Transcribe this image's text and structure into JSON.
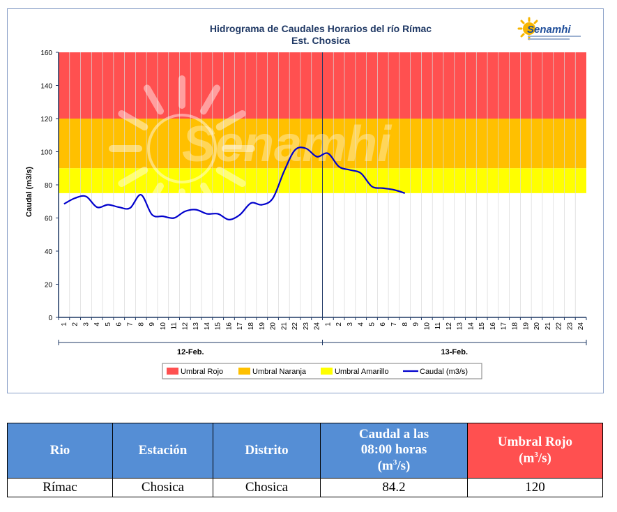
{
  "chart_data": {
    "type": "line",
    "title": "Hidrograma de Caudales Horarios del río Rímac",
    "subtitle": "Est. Chosica",
    "ylabel": "Caudal  (m3/s)",
    "ylim": [
      0,
      160
    ],
    "yticks": [
      "0",
      "20",
      "40",
      "60",
      "80",
      "100",
      "120",
      "140",
      "160"
    ],
    "x_tick_labels": [
      "1",
      "2",
      "3",
      "4",
      "5",
      "6",
      "7",
      "8",
      "9",
      "10",
      "11",
      "12",
      "13",
      "14",
      "15",
      "16",
      "17",
      "18",
      "19",
      "20",
      "21",
      "22",
      "23",
      "24",
      "1",
      "2",
      "3",
      "4",
      "5",
      "6",
      "7",
      "8",
      "9",
      "10",
      "11",
      "12",
      "13",
      "14",
      "15",
      "16",
      "17",
      "18",
      "19",
      "20",
      "21",
      "22",
      "23",
      "24"
    ],
    "days": [
      "12-Feb.",
      "13-Feb."
    ],
    "thresholds": [
      {
        "name": "Umbral Rojo",
        "from": 120,
        "to": 160,
        "color": "#ff5050"
      },
      {
        "name": "Umbral Naranja",
        "from": 90,
        "to": 120,
        "color": "#ffc000"
      },
      {
        "name": "Umbral Amarillo",
        "from": 75,
        "to": 90,
        "color": "#ffff00"
      }
    ],
    "series": [
      {
        "name": "Caudal (m3/s)",
        "color": "#0000cc",
        "x": [
          0,
          1,
          2,
          3,
          4,
          5,
          6,
          7,
          8,
          9,
          10,
          11,
          12,
          13,
          14,
          15,
          16,
          17,
          18,
          19,
          20,
          21,
          22,
          23,
          24,
          25,
          26,
          27,
          28,
          29,
          30,
          31
        ],
        "values": [
          68.5,
          72,
          73,
          66.5,
          68,
          66.5,
          66,
          74,
          62,
          61,
          60,
          64,
          65,
          62.5,
          62.5,
          59,
          62,
          69,
          68,
          72,
          88,
          101,
          102,
          97,
          99,
          91,
          89,
          87,
          79,
          78,
          77,
          75
        ]
      }
    ],
    "legend": [
      "Umbral Rojo",
      "Umbral Naranja",
      "Umbral Amarillo",
      "Caudal (m3/s)"
    ],
    "legend_position": "bottom",
    "watermark": "Senamhi",
    "logo": "Senamhi"
  },
  "table": {
    "headers": [
      "Rio",
      "Estación",
      "Distrito",
      "Caudal a las 08:00 horas (m³/s)",
      "Umbral Rojo (m³/s)"
    ],
    "header_caudal": {
      "line1": "Caudal a las",
      "line2": "08:00 horas",
      "line3": "(m",
      "sup": "3",
      "line3b": "/s)"
    },
    "header_umbral": {
      "line1": "Umbral Rojo",
      "line2": "(m",
      "sup": "3",
      "line2b": "/s)"
    },
    "header_colors": {
      "blue": "#558ed5",
      "red": "#ff5050"
    },
    "rows": [
      [
        "Rímac",
        "Chosica",
        "Chosica",
        "84.2",
        "120"
      ]
    ]
  }
}
